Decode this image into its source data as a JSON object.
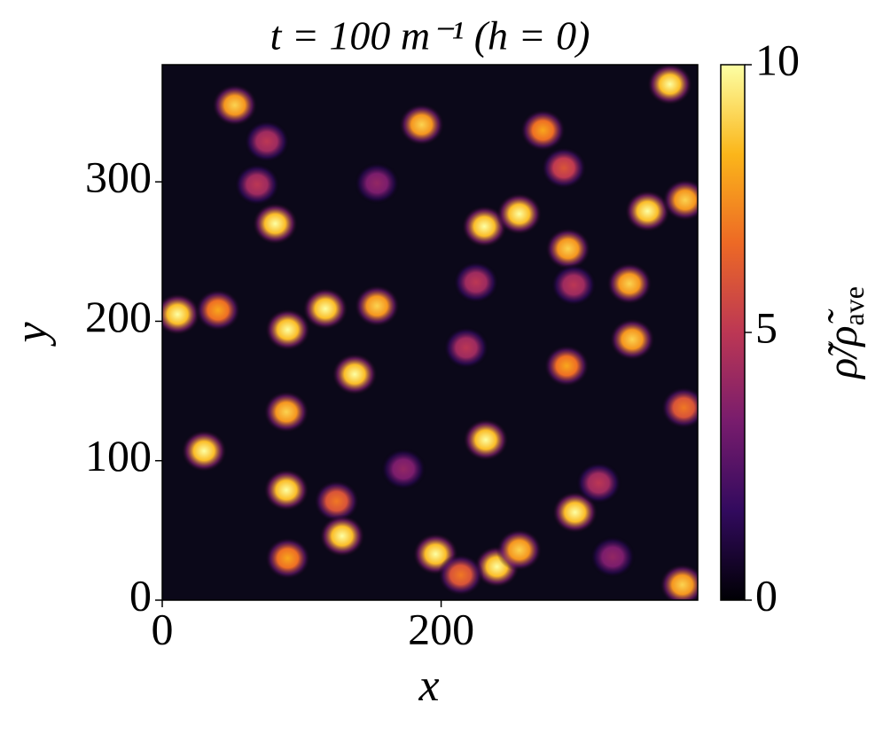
{
  "chart_data": {
    "type": "heatmap",
    "title": "t = 100 m⁻¹ (h = 0)",
    "xlabel": "x",
    "ylabel": "y",
    "colorbar_label": "ρ̃/ρ̃",
    "colorbar_label_sub": "ave",
    "xlim": [
      0,
      384
    ],
    "ylim": [
      0,
      384
    ],
    "xticks": [
      0,
      200
    ],
    "yticks": [
      0,
      100,
      200,
      300
    ],
    "clim": [
      0,
      10
    ],
    "cticks": [
      0,
      5,
      10
    ],
    "colormap": [
      "#000004",
      "#320a5e",
      "#781c6d",
      "#bc3754",
      "#ed6925",
      "#fbb61a",
      "#fcffa4"
    ],
    "x": [
      52,
      364,
      186,
      273,
      75,
      68,
      81,
      154,
      231,
      256,
      288,
      291,
      348,
      375,
      11,
      40,
      90,
      117,
      154,
      225,
      335,
      295,
      337,
      218,
      138,
      290,
      89,
      374,
      30,
      232,
      173,
      89,
      125,
      129,
      90,
      196,
      240,
      256,
      296,
      313,
      323,
      373,
      214
    ],
    "y": [
      355,
      370,
      341,
      337,
      329,
      298,
      270,
      299,
      268,
      277,
      310,
      252,
      279,
      287,
      205,
      208,
      194,
      209,
      211,
      228,
      227,
      226,
      187,
      181,
      162,
      168,
      135,
      138,
      107,
      115,
      94,
      79,
      71,
      46,
      30,
      33,
      24,
      36,
      63,
      84,
      31,
      11,
      18
    ],
    "values": [
      9,
      10,
      9,
      8,
      5,
      5,
      10,
      4,
      10,
      10,
      6,
      9,
      10,
      9,
      10,
      8,
      10,
      10,
      9,
      5,
      9,
      5,
      9,
      5,
      10,
      8,
      9,
      7,
      10,
      10,
      4,
      10,
      7,
      10,
      8,
      10,
      10,
      9,
      10,
      5,
      4,
      9,
      7
    ]
  }
}
